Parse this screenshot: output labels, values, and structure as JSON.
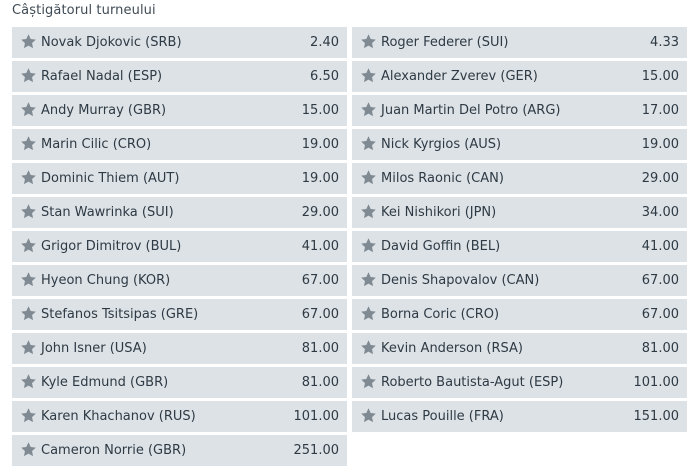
{
  "market": {
    "title": "Câștigătorul turneului"
  },
  "icons": {
    "favorite": "star-icon"
  },
  "colors": {
    "row_background": "#dde2e6",
    "star": "#7f8a93",
    "text": "#2e3a44"
  },
  "left": [
    {
      "name": "Novak Djokovic (SRB)",
      "odds": "2.40"
    },
    {
      "name": "Rafael Nadal (ESP)",
      "odds": "6.50"
    },
    {
      "name": "Andy Murray (GBR)",
      "odds": "15.00"
    },
    {
      "name": "Marin Cilic (CRO)",
      "odds": "19.00"
    },
    {
      "name": "Dominic Thiem (AUT)",
      "odds": "19.00"
    },
    {
      "name": "Stan Wawrinka (SUI)",
      "odds": "29.00"
    },
    {
      "name": "Grigor Dimitrov (BUL)",
      "odds": "41.00"
    },
    {
      "name": "Hyeon Chung (KOR)",
      "odds": "67.00"
    },
    {
      "name": "Stefanos Tsitsipas (GRE)",
      "odds": "67.00"
    },
    {
      "name": "John Isner (USA)",
      "odds": "81.00"
    },
    {
      "name": "Kyle Edmund (GBR)",
      "odds": "81.00"
    },
    {
      "name": "Karen Khachanov (RUS)",
      "odds": "101.00"
    },
    {
      "name": "Cameron Norrie (GBR)",
      "odds": "251.00"
    }
  ],
  "right": [
    {
      "name": "Roger Federer (SUI)",
      "odds": "4.33"
    },
    {
      "name": "Alexander Zverev (GER)",
      "odds": "15.00"
    },
    {
      "name": "Juan Martin Del Potro (ARG)",
      "odds": "17.00"
    },
    {
      "name": "Nick Kyrgios (AUS)",
      "odds": "19.00"
    },
    {
      "name": "Milos Raonic (CAN)",
      "odds": "29.00"
    },
    {
      "name": "Kei Nishikori (JPN)",
      "odds": "34.00"
    },
    {
      "name": "David Goffin (BEL)",
      "odds": "41.00"
    },
    {
      "name": "Denis Shapovalov (CAN)",
      "odds": "67.00"
    },
    {
      "name": "Borna Coric (CRO)",
      "odds": "67.00"
    },
    {
      "name": "Kevin Anderson (RSA)",
      "odds": "81.00"
    },
    {
      "name": "Roberto Bautista-Agut (ESP)",
      "odds": "101.00"
    },
    {
      "name": "Lucas Pouille (FRA)",
      "odds": "151.00"
    }
  ]
}
